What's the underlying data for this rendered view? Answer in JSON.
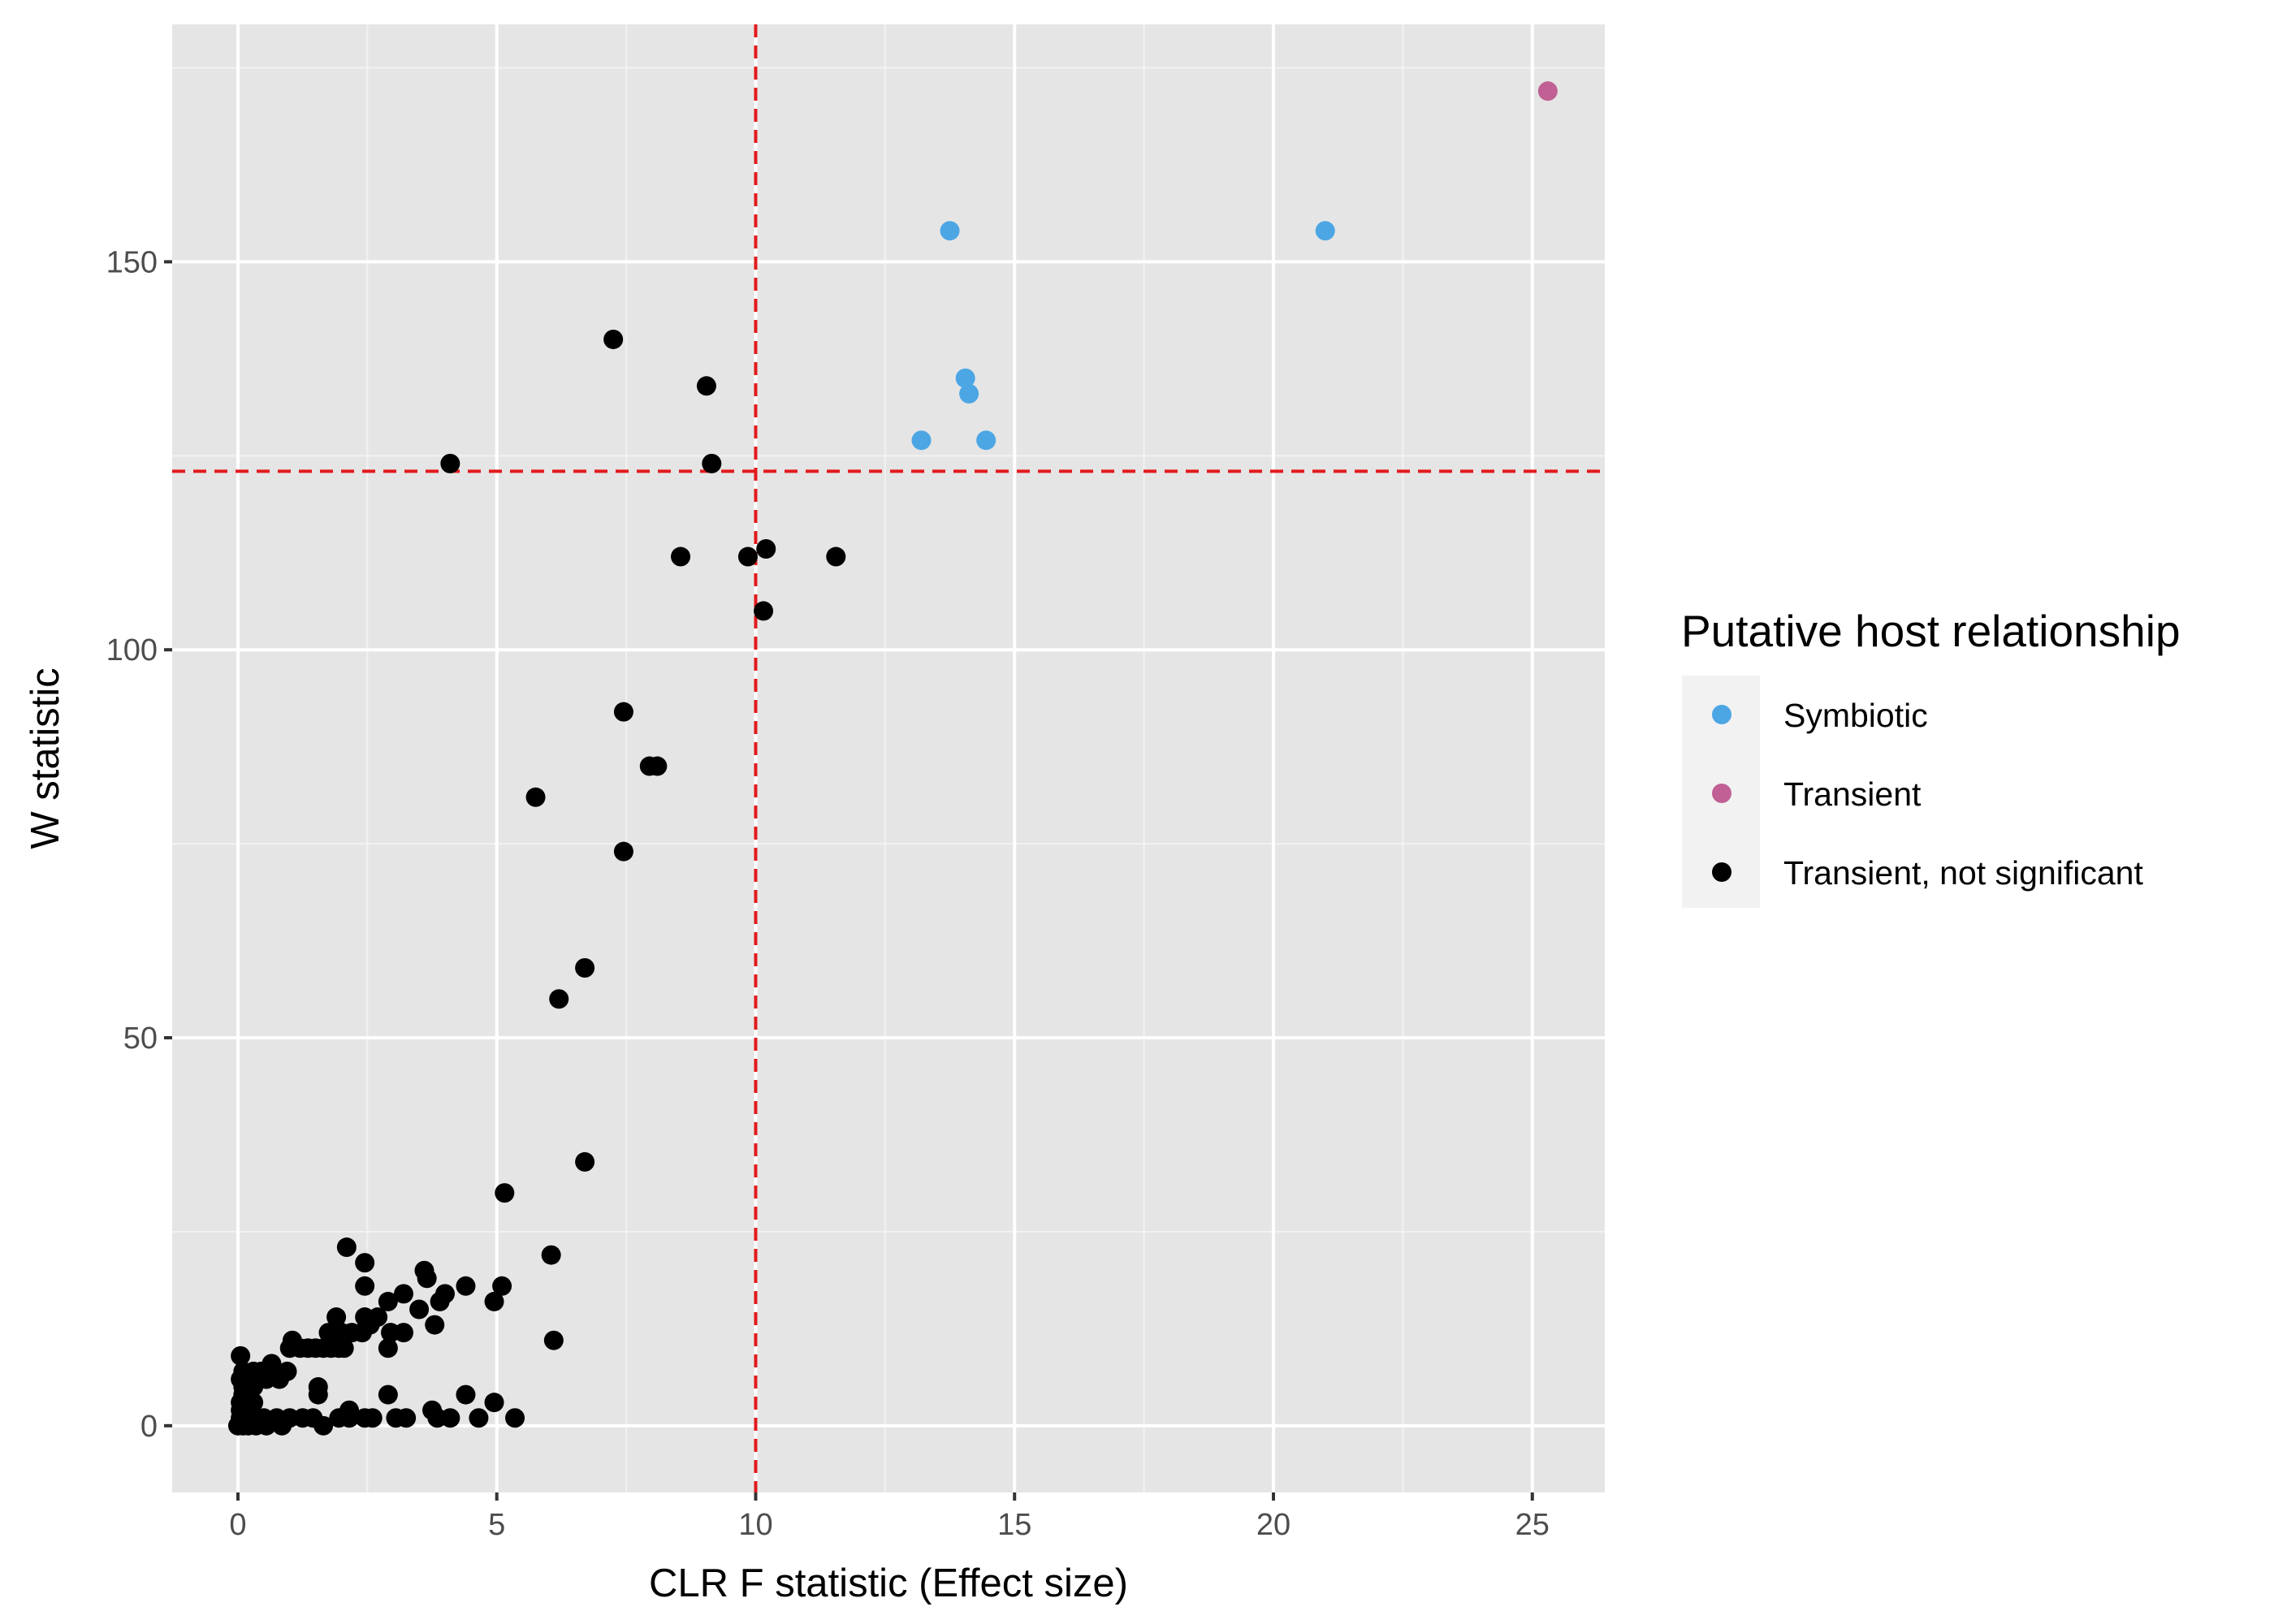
{
  "chart_data": {
    "type": "scatter",
    "title": "",
    "xlabel": "CLR F statistic (Effect size)",
    "ylabel": "W statistic",
    "xlim": [
      -1.27,
      26.4
    ],
    "ylim": [
      -8.6,
      180.6
    ],
    "x_ticks": [
      0,
      5,
      10,
      15,
      20,
      25
    ],
    "y_ticks": [
      0,
      50,
      100,
      150
    ],
    "grid": true,
    "thresholds": {
      "x": 10,
      "y": 123,
      "color": "#e31a1c",
      "style": "dashed"
    },
    "legend": {
      "title": "Putative host relationship",
      "position": "right",
      "entries": [
        {
          "label": "Symbiotic",
          "color": "#4da6e4"
        },
        {
          "label": "Transient",
          "color": "#c06094"
        },
        {
          "label": "Transient, not significant",
          "color": "#000000"
        }
      ]
    },
    "series": [
      {
        "name": "Symbiotic",
        "color": "#4da6e4",
        "points": [
          [
            13.75,
            154
          ],
          [
            21.0,
            154
          ],
          [
            14.05,
            135
          ],
          [
            14.12,
            133
          ],
          [
            13.2,
            127
          ],
          [
            14.45,
            127
          ]
        ]
      },
      {
        "name": "Transient",
        "color": "#c06094",
        "points": [
          [
            25.3,
            172
          ]
        ]
      },
      {
        "name": "Transient, not significant",
        "color": "#000000",
        "points": [
          [
            7.25,
            140
          ],
          [
            9.05,
            134
          ],
          [
            4.1,
            124
          ],
          [
            9.15,
            124
          ],
          [
            8.55,
            112
          ],
          [
            9.85,
            112
          ],
          [
            10.2,
            113
          ],
          [
            11.55,
            112
          ],
          [
            10.15,
            105
          ],
          [
            7.45,
            92
          ],
          [
            7.95,
            85
          ],
          [
            8.1,
            85
          ],
          [
            5.75,
            81
          ],
          [
            7.45,
            74
          ],
          [
            6.7,
            59
          ],
          [
            6.2,
            55
          ],
          [
            6.7,
            34
          ],
          [
            5.15,
            30
          ],
          [
            6.05,
            22
          ],
          [
            6.1,
            11
          ],
          [
            2.1,
            23
          ],
          [
            2.45,
            21
          ],
          [
            3.6,
            20
          ],
          [
            3.65,
            19
          ],
          [
            4.4,
            18
          ],
          [
            5.1,
            18
          ],
          [
            2.45,
            18
          ],
          [
            3.2,
            17
          ],
          [
            4.0,
            17
          ],
          [
            2.9,
            16
          ],
          [
            3.9,
            16
          ],
          [
            4.95,
            16
          ],
          [
            3.5,
            15
          ],
          [
            2.45,
            14
          ],
          [
            1.9,
            14
          ],
          [
            2.7,
            14
          ],
          [
            2.55,
            13
          ],
          [
            3.8,
            13
          ],
          [
            1.05,
            11
          ],
          [
            1.75,
            12
          ],
          [
            2.95,
            12
          ],
          [
            3.2,
            12
          ],
          [
            2.0,
            12
          ],
          [
            2.2,
            12
          ],
          [
            2.4,
            12
          ],
          [
            1.0,
            10
          ],
          [
            1.2,
            10
          ],
          [
            1.35,
            10
          ],
          [
            1.5,
            10
          ],
          [
            1.65,
            10
          ],
          [
            1.8,
            10
          ],
          [
            1.95,
            10
          ],
          [
            2.05,
            10
          ],
          [
            2.9,
            10
          ],
          [
            0.05,
            9
          ],
          [
            0.65,
            8
          ],
          [
            0.1,
            7
          ],
          [
            0.3,
            7
          ],
          [
            0.45,
            7
          ],
          [
            0.6,
            7
          ],
          [
            0.95,
            7
          ],
          [
            0.05,
            6
          ],
          [
            0.25,
            6
          ],
          [
            0.4,
            6
          ],
          [
            0.55,
            6
          ],
          [
            0.8,
            6
          ],
          [
            0.1,
            5
          ],
          [
            0.3,
            5
          ],
          [
            1.55,
            5
          ],
          [
            0.1,
            4
          ],
          [
            0.2,
            4
          ],
          [
            1.55,
            4
          ],
          [
            2.9,
            4
          ],
          [
            4.4,
            4
          ],
          [
            0.05,
            3
          ],
          [
            0.3,
            3
          ],
          [
            4.95,
            3
          ],
          [
            0.05,
            2
          ],
          [
            0.2,
            2
          ],
          [
            2.15,
            2
          ],
          [
            3.75,
            2
          ],
          [
            0.05,
            1
          ],
          [
            0.3,
            1
          ],
          [
            0.5,
            1
          ],
          [
            0.75,
            1
          ],
          [
            1.0,
            1
          ],
          [
            1.25,
            1
          ],
          [
            1.45,
            1
          ],
          [
            1.95,
            1
          ],
          [
            2.15,
            1
          ],
          [
            2.45,
            1
          ],
          [
            2.6,
            1
          ],
          [
            3.05,
            1
          ],
          [
            3.25,
            1
          ],
          [
            3.85,
            1
          ],
          [
            4.1,
            1
          ],
          [
            4.65,
            1
          ],
          [
            5.35,
            1
          ],
          [
            0.0,
            0
          ],
          [
            0.1,
            0
          ],
          [
            0.2,
            0
          ],
          [
            0.35,
            0
          ],
          [
            0.55,
            0
          ],
          [
            0.85,
            0
          ],
          [
            1.65,
            0
          ]
        ]
      }
    ]
  }
}
